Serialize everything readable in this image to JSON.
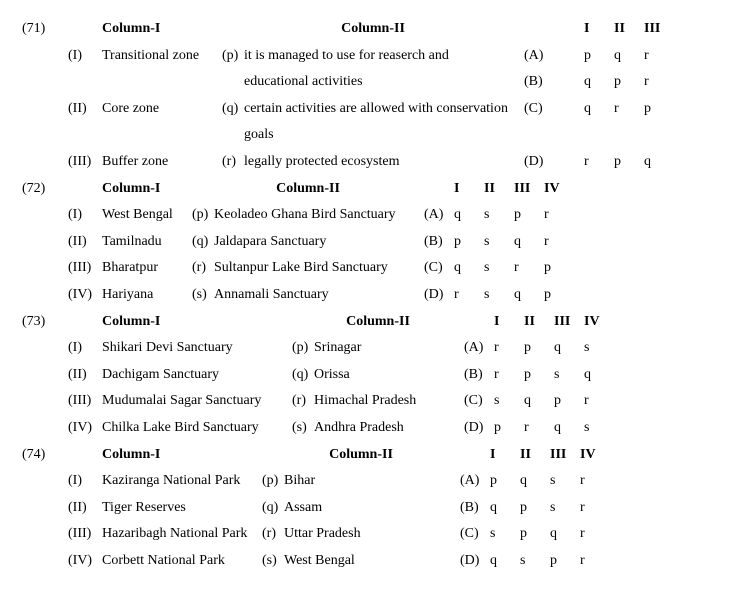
{
  "questions": [
    {
      "num": "(71)",
      "c1_width": "w-c1-120",
      "c2_width": "w-c2-280",
      "hdr_c1_cls": "hdr-c1",
      "hdr_c2_cls": "hdr-c2-302",
      "ans_count": 3,
      "col1_h": "Column-I",
      "col2_h": "Column-II",
      "ans_h": [
        "I",
        "II",
        "III"
      ],
      "rows": [
        {
          "idx": "(I)",
          "c1": "Transitional zone",
          "key": "(p)",
          "c2": "it is managed to use for reaserch and",
          "opt": "(A)",
          "ans": [
            "p",
            "q",
            "r"
          ]
        },
        {
          "idx": "",
          "c1": "",
          "key": "",
          "c2": "educational activities",
          "opt": "(B)",
          "ans": [
            "q",
            "p",
            "r"
          ]
        },
        {
          "idx": "(II)",
          "c1": "Core zone",
          "key": "(q)",
          "c2": "certain activities are allowed with conservation",
          "opt": "(C)",
          "ans": [
            "q",
            "r",
            "p"
          ]
        },
        {
          "idx": "",
          "c1": "",
          "key": "",
          "c2": "goals",
          "opt": "",
          "ans": [
            "",
            "",
            ""
          ]
        },
        {
          "idx": "(III)",
          "c1": "Buffer zone",
          "key": "(r)",
          "c2": "legally protected ecosystem",
          "opt": "(D)",
          "ans": [
            "r",
            "p",
            "q"
          ]
        }
      ]
    },
    {
      "num": "(72)",
      "c1_width": "w-c1-90",
      "c2_width": "w-c2-210",
      "hdr_c1_cls": "hdr-c1",
      "hdr_c2_cls": "hdr-c2-232",
      "ans_count": 4,
      "col1_h": "Column-I",
      "col2_h": "Column-II",
      "ans_h": [
        "I",
        "II",
        "III",
        "IV"
      ],
      "rows": [
        {
          "idx": "(I)",
          "c1": "West Bengal",
          "key": "(p)",
          "c2": "Keoladeo Ghana Bird Sanctuary",
          "opt": "(A)",
          "ans": [
            "q",
            "s",
            "p",
            "r"
          ]
        },
        {
          "idx": "(II)",
          "c1": "Tamilnadu",
          "key": "(q)",
          "c2": "Jaldapara Sanctuary",
          "opt": "(B)",
          "ans": [
            "p",
            "s",
            "q",
            "r"
          ]
        },
        {
          "idx": "(III)",
          "c1": "Bharatpur",
          "key": "(r)",
          "c2": "Sultanpur Lake Bird Sanctuary",
          "opt": "(C)",
          "ans": [
            "q",
            "s",
            "r",
            "p"
          ]
        },
        {
          "idx": "(IV)",
          "c1": "Hariyana",
          "key": "(s)",
          "c2": "Annamali Sanctuary",
          "opt": "(D)",
          "ans": [
            "r",
            "s",
            "q",
            "p"
          ]
        }
      ]
    },
    {
      "num": "(73)",
      "c1_width": "w-c1-190",
      "c2_width": "w-c2-150",
      "hdr_c1_cls": "hdr-c1",
      "hdr_c2_cls": "hdr-c2-172",
      "ans_count": 4,
      "col1_h": "Column-I",
      "col2_h": "Column-II",
      "ans_h": [
        "I",
        "II",
        "III",
        "IV"
      ],
      "rows": [
        {
          "idx": "(I)",
          "c1": "Shikari Devi Sanctuary",
          "key": "(p)",
          "c2": "Srinagar",
          "opt": "(A)",
          "ans": [
            "r",
            "p",
            "q",
            "s"
          ]
        },
        {
          "idx": "(II)",
          "c1": "Dachigam Sanctuary",
          "key": "(q)",
          "c2": "Orissa",
          "opt": "(B)",
          "ans": [
            "r",
            "p",
            "s",
            "q"
          ]
        },
        {
          "idx": "(III)",
          "c1": "Mudumalai Sagar Sanctuary",
          "key": "(r)",
          "c2": "Himachal Pradesh",
          "opt": "(C)",
          "ans": [
            "s",
            "q",
            "p",
            "r"
          ]
        },
        {
          "idx": "(IV)",
          "c1": "Chilka Lake Bird Sanctuary",
          "key": "(s)",
          "c2": "Andhra Pradesh",
          "opt": "(D)",
          "ans": [
            "p",
            "r",
            "q",
            "s"
          ]
        }
      ]
    },
    {
      "num": "(74)",
      "c1_width": "w-c1-160",
      "c2_width": "w-c2-176",
      "hdr_c1_cls": "hdr-c1",
      "hdr_c2_cls": "hdr-c2-198",
      "ans_count": 4,
      "col1_h": "Column-I",
      "col2_h": "Column-II",
      "ans_h": [
        "I",
        "II",
        "III",
        "IV"
      ],
      "rows": [
        {
          "idx": "(I)",
          "c1": "Kaziranga National Park",
          "key": "(p)",
          "c2": "Bihar",
          "opt": "(A)",
          "ans": [
            "p",
            "q",
            "s",
            "r"
          ]
        },
        {
          "idx": "(II)",
          "c1": "Tiger Reserves",
          "key": "(q)",
          "c2": "Assam",
          "opt": "(B)",
          "ans": [
            "q",
            "p",
            "s",
            "r"
          ]
        },
        {
          "idx": "(III)",
          "c1": "Hazaribagh National Park",
          "key": "(r)",
          "c2": "Uttar Pradesh",
          "opt": "(C)",
          "ans": [
            "s",
            "p",
            "q",
            "r"
          ]
        },
        {
          "idx": "(IV)",
          "c1": "Corbett National Park",
          "key": "(s)",
          "c2": "West Bengal",
          "opt": "(D)",
          "ans": [
            "q",
            "s",
            "p",
            "r"
          ]
        }
      ]
    }
  ]
}
